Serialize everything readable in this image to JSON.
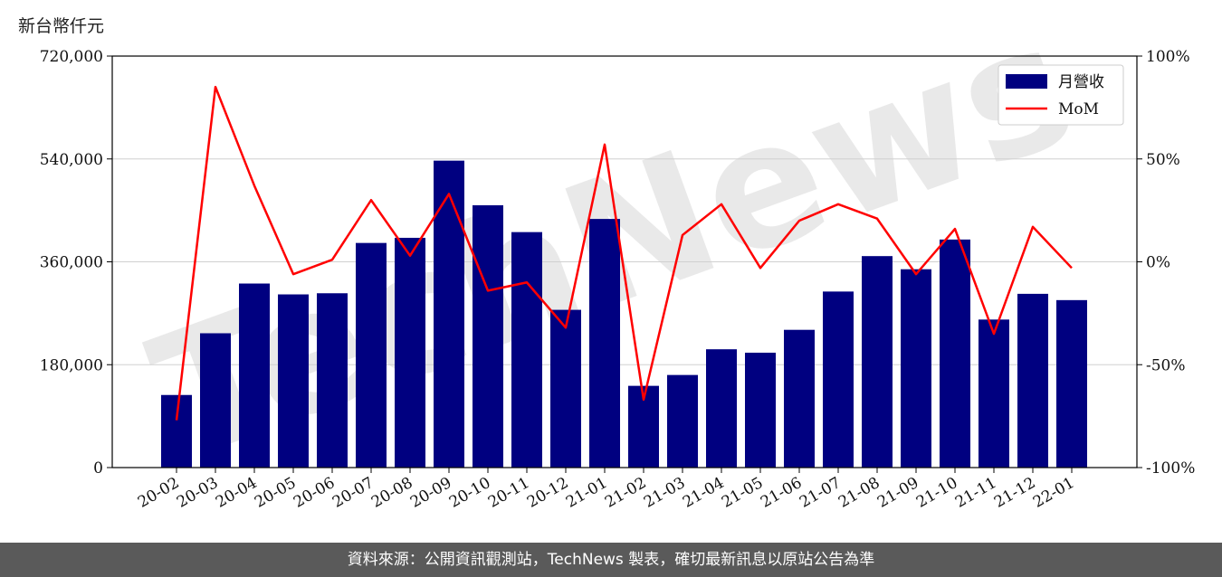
{
  "unit_label": "新台幣仟元",
  "footer_text": "資料來源：公開資訊觀測站，TechNews 製表，確切最新訊息以原站公告為準",
  "watermark_text": "TechNews",
  "chart_data": {
    "type": "bar",
    "categories": [
      "20-02",
      "20-03",
      "20-04",
      "20-05",
      "20-06",
      "20-07",
      "20-08",
      "20-09",
      "20-10",
      "20-11",
      "20-12",
      "21-01",
      "21-02",
      "21-03",
      "21-04",
      "21-05",
      "21-06",
      "21-07",
      "21-08",
      "21-09",
      "21-10",
      "21-11",
      "21-12",
      "22-01"
    ],
    "series": [
      {
        "name": "月營收",
        "type": "bar",
        "axis": "left",
        "color": "#000080",
        "values": [
          127000,
          235000,
          322000,
          303000,
          305000,
          393000,
          402000,
          537000,
          459000,
          412000,
          276000,
          435000,
          143000,
          162000,
          207000,
          201000,
          241000,
          308000,
          370000,
          347000,
          399000,
          259000,
          304000,
          293000
        ]
      },
      {
        "name": "MoM",
        "type": "line",
        "axis": "right",
        "color": "#ff0000",
        "values": [
          -77,
          85,
          37,
          -6,
          1,
          30,
          3,
          33,
          -14,
          -10,
          -32,
          57,
          -67,
          13,
          28,
          -3,
          20,
          28,
          21,
          -6,
          16,
          -35,
          17,
          -3
        ]
      }
    ],
    "y_left": {
      "min": 0,
      "max": 720000,
      "ticks": [
        0,
        180000,
        360000,
        540000,
        720000
      ],
      "tick_labels": [
        "0",
        "180,000",
        "360,000",
        "540,000",
        "720,000"
      ]
    },
    "y_right": {
      "min": -100,
      "max": 100,
      "ticks": [
        -100,
        -50,
        0,
        50,
        100
      ],
      "tick_labels": [
        "-100%",
        "-50%",
        "0%",
        "50%",
        "100%"
      ]
    },
    "grid": "horizontal",
    "legend_position": "top-right"
  }
}
